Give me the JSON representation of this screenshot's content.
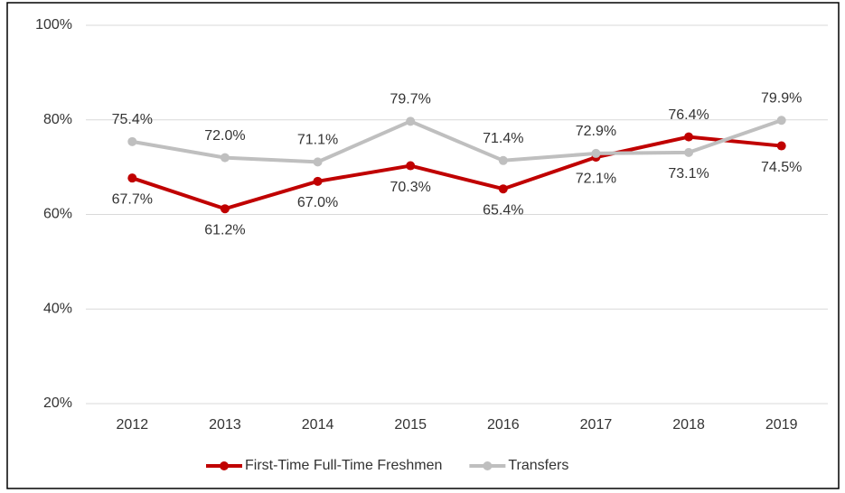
{
  "chart_data": {
    "type": "line",
    "categories": [
      "2012",
      "2013",
      "2014",
      "2015",
      "2016",
      "2017",
      "2018",
      "2019"
    ],
    "series": [
      {
        "name": "First-Time Full-Time Freshmen",
        "color": "#c00000",
        "values": [
          67.7,
          61.2,
          67.0,
          70.3,
          65.4,
          72.1,
          76.4,
          74.5
        ],
        "value_labels": [
          "67.7%",
          "61.2%",
          "67.0%",
          "70.3%",
          "65.4%",
          "72.1%",
          "76.4%",
          "74.5%"
        ]
      },
      {
        "name": "Transfers",
        "color": "#bfbfbf",
        "values": [
          75.4,
          72.0,
          71.1,
          79.7,
          71.4,
          72.9,
          73.1,
          79.9
        ],
        "value_labels": [
          "75.4%",
          "72.0%",
          "71.1%",
          "79.7%",
          "71.4%",
          "72.9%",
          "73.1%",
          "79.9%"
        ]
      }
    ],
    "ylim": [
      20,
      100
    ],
    "yticks": [
      {
        "value": 20,
        "label": "20%"
      },
      {
        "value": 40,
        "label": "40%"
      },
      {
        "value": 60,
        "label": "60%"
      },
      {
        "value": 80,
        "label": "80%"
      },
      {
        "value": 100,
        "label": "100%"
      }
    ],
    "grid": true,
    "legend": "bottom"
  }
}
